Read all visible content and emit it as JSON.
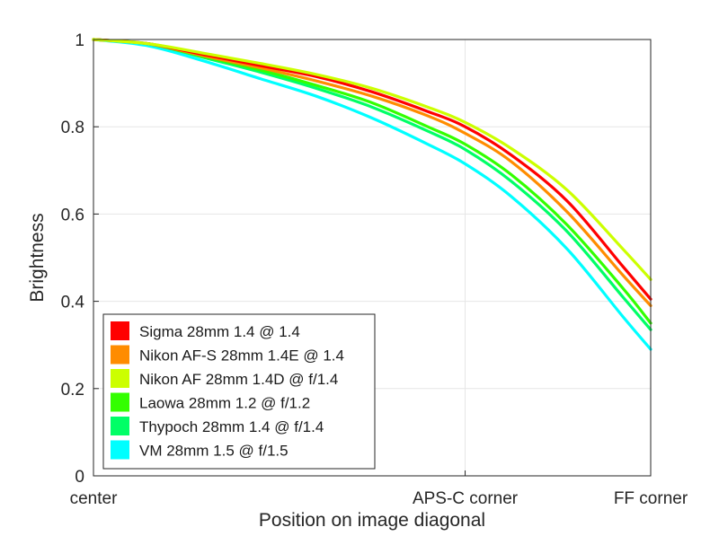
{
  "chart_data": {
    "type": "line",
    "title": "",
    "xlabel": "Position on image diagonal",
    "ylabel": "Brightness",
    "xlim": [
      0,
      1
    ],
    "ylim": [
      0,
      1
    ],
    "grid": true,
    "legend_position": "lower left",
    "x_ticks": [
      {
        "pos": 0,
        "label": "center"
      },
      {
        "pos": 0.667,
        "label": "APS-C corner"
      },
      {
        "pos": 1,
        "label": "FF corner"
      }
    ],
    "y_ticks": [
      {
        "pos": 0,
        "label": "0"
      },
      {
        "pos": 0.2,
        "label": "0.2"
      },
      {
        "pos": 0.4,
        "label": "0.4"
      },
      {
        "pos": 0.6,
        "label": "0.6"
      },
      {
        "pos": 0.8,
        "label": "0.8"
      },
      {
        "pos": 1,
        "label": "1"
      }
    ],
    "x": [
      0,
      0.1,
      0.2,
      0.3,
      0.4,
      0.5,
      0.6,
      0.667,
      0.75,
      0.85,
      0.95,
      1.0
    ],
    "series": [
      {
        "name": "Sigma 28mm 1.4 @ 1.4",
        "color": "#ff0000",
        "values": [
          1.0,
          0.99,
          0.965,
          0.94,
          0.915,
          0.88,
          0.835,
          0.8,
          0.735,
          0.63,
          0.48,
          0.405
        ]
      },
      {
        "name": "Nikon AF-S 28mm 1.4E @ 1.4",
        "color": "#ff8c00",
        "values": [
          1.0,
          0.99,
          0.962,
          0.935,
          0.905,
          0.87,
          0.825,
          0.785,
          0.72,
          0.605,
          0.46,
          0.39
        ]
      },
      {
        "name": "Nikon AF 28mm 1.4D @ f/1.4",
        "color": "#ccff00",
        "values": [
          1.0,
          0.99,
          0.968,
          0.945,
          0.92,
          0.888,
          0.845,
          0.81,
          0.75,
          0.655,
          0.52,
          0.45
        ]
      },
      {
        "name": "Laowa 28mm 1.2 @ f/1.2",
        "color": "#33ff00",
        "values": [
          1.0,
          0.99,
          0.96,
          0.93,
          0.895,
          0.855,
          0.8,
          0.76,
          0.69,
          0.575,
          0.43,
          0.35
        ]
      },
      {
        "name": "Thypoch 28mm 1.4 @ f/1.4",
        "color": "#00ff66",
        "values": [
          1.0,
          0.99,
          0.958,
          0.925,
          0.888,
          0.845,
          0.79,
          0.748,
          0.675,
          0.56,
          0.41,
          0.335
        ]
      },
      {
        "name": "VM 28mm 1.5 @ f/1.5",
        "color": "#00ffff",
        "values": [
          1.0,
          0.985,
          0.95,
          0.91,
          0.87,
          0.82,
          0.76,
          0.715,
          0.64,
          0.52,
          0.365,
          0.29
        ]
      }
    ]
  }
}
